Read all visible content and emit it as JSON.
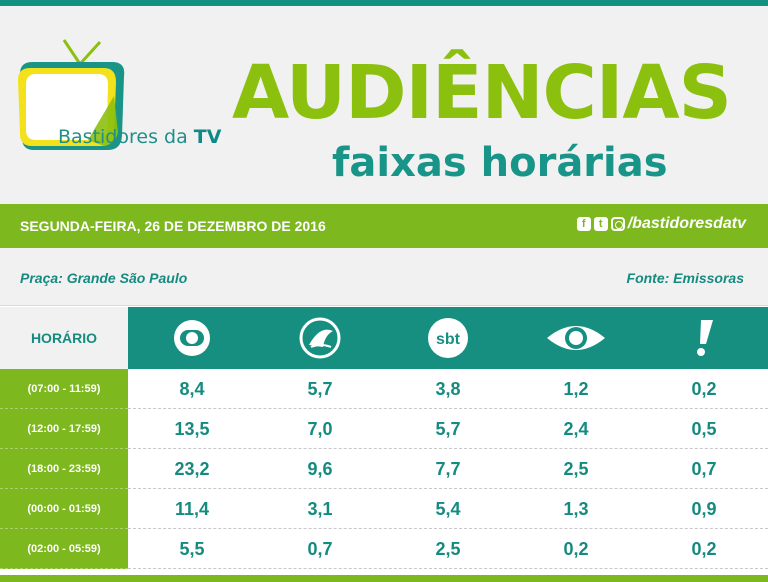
{
  "brand": {
    "logo_text": "Bastidores da ",
    "logo_text_bold": "TV",
    "colors": {
      "teal": "#168f81",
      "green": "#7db81f",
      "title_green": "#8cc00e"
    }
  },
  "header": {
    "title": "AUDIÊNCIAS",
    "subtitle": "faixas horárias"
  },
  "date_bar": {
    "date": "SEGUNDA-FEIRA, 26 DE DEZEMBRO DE 2016",
    "social_icons": [
      "facebook-icon",
      "twitter-icon",
      "instagram-icon"
    ],
    "handle": "/bastidoresdatv"
  },
  "info": {
    "region": "Praça: Grande São Paulo",
    "source": "Fonte: Emissoras"
  },
  "table": {
    "hour_header": "HORÁRIO",
    "channels": [
      {
        "name": "globo-logo"
      },
      {
        "name": "record-logo"
      },
      {
        "name": "sbt-logo",
        "text": "sbt"
      },
      {
        "name": "band-logo"
      },
      {
        "name": "redetv-logo"
      }
    ],
    "rows": [
      {
        "label": "(07:00 - 11:59)",
        "values": [
          "8,4",
          "5,7",
          "3,8",
          "1,2",
          "0,2"
        ]
      },
      {
        "label": "(12:00 - 17:59)",
        "values": [
          "13,5",
          "7,0",
          "5,7",
          "2,4",
          "0,5"
        ]
      },
      {
        "label": "(18:00 - 23:59)",
        "values": [
          "23,2",
          "9,6",
          "7,7",
          "2,5",
          "0,7"
        ]
      },
      {
        "label": "(00:00 - 01:59)",
        "values": [
          "11,4",
          "3,1",
          "5,4",
          "1,3",
          "0,9"
        ]
      },
      {
        "label": "(02:00 - 05:59)",
        "values": [
          "5,5",
          "0,7",
          "2,5",
          "0,2",
          "0,2"
        ]
      }
    ]
  }
}
